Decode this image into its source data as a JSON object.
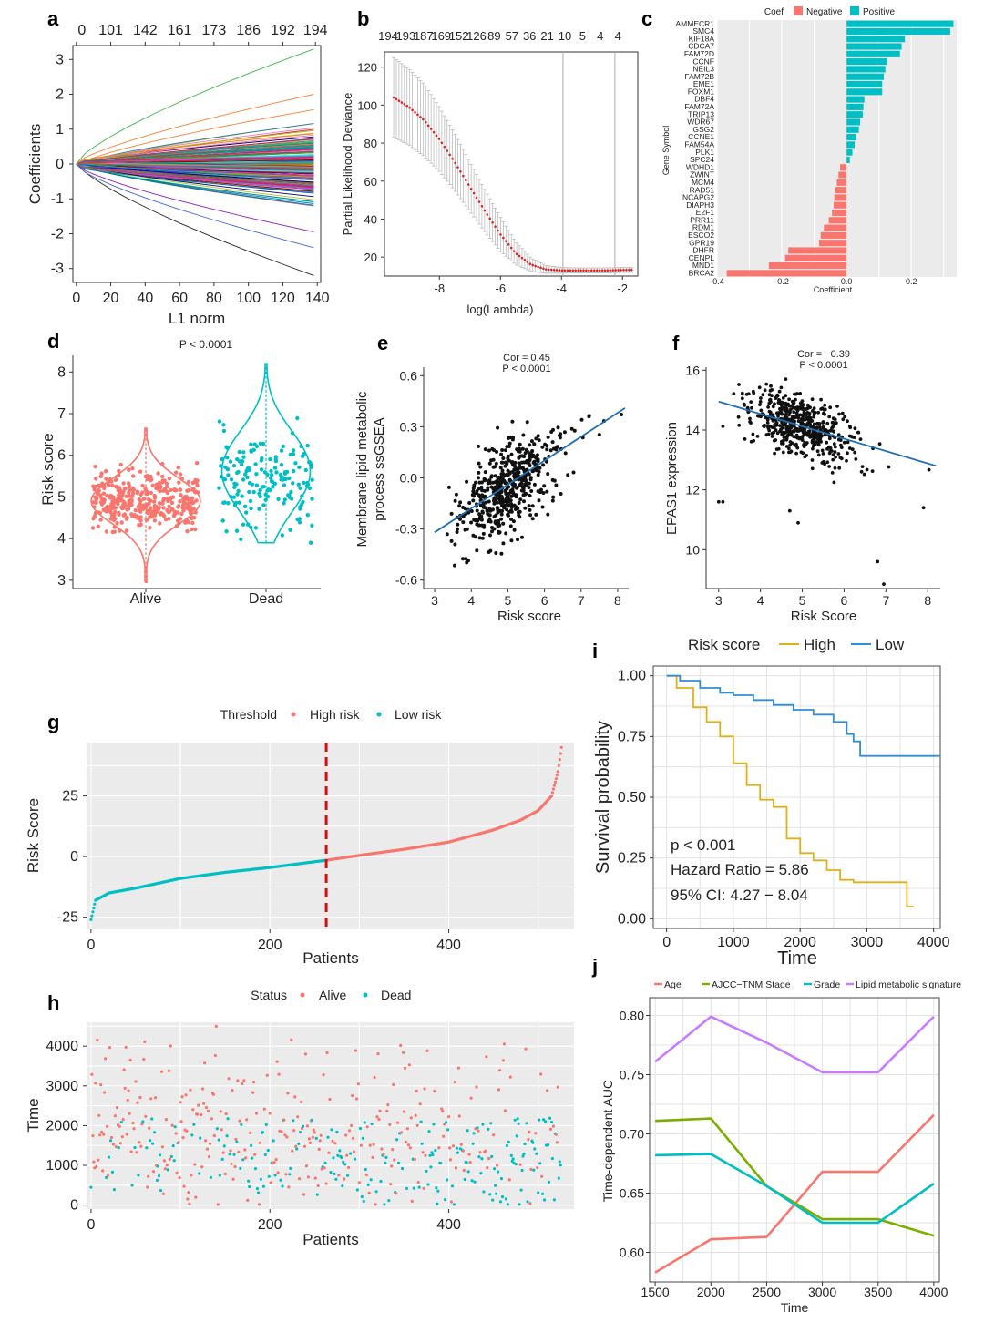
{
  "colors": {
    "red": "#F8766D",
    "teal": "#00BFC4",
    "black": "#111111",
    "blue": "#1f6fb5",
    "gold": "#E0B01A",
    "lightblue": "#2E8FD6",
    "olive": "#7CAE00",
    "purple": "#C77CFF",
    "dashed_red": "#CC1111"
  },
  "chart_data": [
    {
      "panel": "a",
      "type": "line",
      "xlabel": "L1 norm",
      "ylabel": "Coefficients",
      "top_axis_ticks": [
        "0",
        "101",
        "142",
        "161",
        "173",
        "186",
        "192",
        "194"
      ],
      "x_ticks": [
        0,
        20,
        40,
        60,
        80,
        100,
        120,
        140
      ],
      "y_ticks": [
        -3,
        -2,
        -1,
        0,
        1,
        2,
        3
      ],
      "xlim": [
        -2,
        142
      ],
      "ylim": [
        -3.4,
        3.4
      ],
      "series_count": 194,
      "end_coef_range": [
        -3.2,
        3.3
      ]
    },
    {
      "panel": "b",
      "type": "scatter",
      "xlabel": "log(Lambda)",
      "ylabel": "Partial Likelihood Deviance",
      "top_axis_ticks": [
        "194",
        "193",
        "187",
        "169",
        "152",
        "126",
        "89",
        "57",
        "36",
        "21",
        "10",
        "5",
        "4",
        "4"
      ],
      "x_ticks": [
        -8,
        -6,
        -4,
        -2
      ],
      "y_ticks": [
        20,
        40,
        60,
        80,
        100,
        120
      ],
      "xlim": [
        -9.8,
        -1.5
      ],
      "ylim": [
        10,
        128
      ],
      "vlines": [
        -3.95,
        -2.25
      ],
      "x": [
        -9.5,
        -9.0,
        -8.5,
        -8.0,
        -7.5,
        -7.0,
        -6.5,
        -6.0,
        -5.5,
        -5.0,
        -4.5,
        -4.0,
        -3.5,
        -3.0,
        -2.5,
        -2.0,
        -1.7
      ],
      "y": [
        104,
        99,
        92,
        82,
        70,
        57,
        44,
        32,
        22,
        16,
        13.5,
        13,
        13,
        13,
        13,
        13.2,
        13.3
      ],
      "err": [
        21,
        20,
        19,
        17,
        15,
        13,
        11,
        9,
        6,
        3.5,
        2,
        1.5,
        1.3,
        1.3,
        1.3,
        1.3,
        1.3
      ]
    },
    {
      "panel": "c",
      "type": "bar",
      "legend_title": "Coef",
      "legend": [
        "Negative",
        "Positive"
      ],
      "xlabel": "Coefficient",
      "ylabel": "Gene Symbol",
      "x_ticks": [
        "-0.4",
        "-0.2",
        "0.0",
        "0.2"
      ],
      "xlim": [
        -0.4,
        0.34
      ],
      "categories": [
        "AMMECR1",
        "SMC4",
        "KIF18A",
        "CDCA7",
        "FAM72D",
        "CCNF",
        "NEIL3",
        "FAM72B",
        "EME1",
        "FOXM1",
        "DBF4",
        "FAM72A",
        "TRIP13",
        "WDR67",
        "GSG2",
        "CCNE1",
        "FAM54A",
        "PLK1",
        "SPC24",
        "WDHD1",
        "ZWINT",
        "MCM4",
        "RAD51",
        "NCAPG2",
        "DIAPH3",
        "E2F1",
        "PRR11",
        "RDM1",
        "ESCO2",
        "GPR19",
        "DHFR",
        "CENPL",
        "MND1",
        "BRCA2"
      ],
      "values": [
        0.33,
        0.32,
        0.18,
        0.17,
        0.165,
        0.125,
        0.12,
        0.115,
        0.11,
        0.11,
        0.055,
        0.052,
        0.05,
        0.042,
        0.038,
        0.03,
        0.025,
        0.018,
        0.01,
        -0.02,
        -0.025,
        -0.03,
        -0.035,
        -0.038,
        -0.04,
        -0.045,
        -0.055,
        -0.07,
        -0.08,
        -0.085,
        -0.18,
        -0.19,
        -0.24,
        -0.37
      ]
    },
    {
      "panel": "d",
      "type": "scatter",
      "subtitle": "P < 0.0001",
      "ylabel": "Risk score",
      "categories": [
        "Alive",
        "Dead"
      ],
      "y_ticks": [
        3,
        4,
        5,
        6,
        7,
        8
      ],
      "ylim": [
        2.8,
        8.4
      ],
      "groups": [
        {
          "name": "Alive",
          "median": 4.9,
          "min": 2.95,
          "max": 6.65,
          "n": 360
        },
        {
          "name": "Dead",
          "median": 5.4,
          "min": 3.9,
          "max": 8.2,
          "n": 170
        }
      ]
    },
    {
      "panel": "e",
      "type": "scatter",
      "annotation": [
        "Cor = 0.45",
        "P < 0.0001"
      ],
      "xlabel": "Risk score",
      "ylabel": "Membrane lipid metabolic process ssGSEA",
      "ylabel_lines": [
        "Membrane lipid metabolic",
        "process ssGSEA"
      ],
      "x_ticks": [
        3,
        4,
        5,
        6,
        7,
        8
      ],
      "y_ticks": [
        "-0.6",
        "-0.3",
        "0.0",
        "0.3",
        "0.6"
      ],
      "xlim": [
        2.7,
        8.3
      ],
      "ylim": [
        -0.65,
        0.65
      ],
      "fit_line": {
        "x": [
          3.0,
          8.2
        ],
        "y": [
          -0.32,
          0.41
        ]
      },
      "n_points": 530
    },
    {
      "panel": "f",
      "type": "scatter",
      "annotation": [
        "Cor = −0.39",
        "P < 0.0001"
      ],
      "xlabel": "Risk Score",
      "ylabel": "EPAS1 expression",
      "x_ticks": [
        3,
        4,
        5,
        6,
        7,
        8
      ],
      "y_ticks": [
        10,
        12,
        14,
        16
      ],
      "xlim": [
        2.7,
        8.3
      ],
      "ylim": [
        8.7,
        16.1
      ],
      "fit_line": {
        "x": [
          3.0,
          8.2
        ],
        "y": [
          14.95,
          12.8
        ]
      },
      "n_points": 530
    },
    {
      "panel": "g",
      "type": "scatter",
      "legend_title": "Threshold",
      "legend": [
        "High risk",
        "Low risk"
      ],
      "xlabel": "Patients",
      "ylabel": "Risk Score",
      "x_ticks": [
        0,
        200,
        400
      ],
      "y_ticks": [
        -25,
        0,
        25
      ],
      "xlim": [
        -5,
        540
      ],
      "ylim": [
        -30,
        47
      ],
      "cutoff": 263,
      "x": [
        0,
        5,
        20,
        50,
        100,
        150,
        200,
        263,
        300,
        350,
        400,
        450,
        480,
        500,
        515,
        522,
        526
      ],
      "y": [
        -26,
        -18,
        -15,
        -13,
        -9,
        -6.5,
        -4.5,
        -1.5,
        0.5,
        3,
        6,
        11,
        15,
        19,
        25,
        35,
        45
      ]
    },
    {
      "panel": "h",
      "type": "scatter",
      "legend_title": "Status",
      "legend": [
        "Alive",
        "Dead"
      ],
      "xlabel": "Patients",
      "ylabel": "Time",
      "x_ticks": [
        0,
        200,
        400
      ],
      "y_ticks": [
        0,
        1000,
        2000,
        3000,
        4000
      ],
      "xlim": [
        -5,
        540
      ],
      "ylim": [
        -100,
        4600
      ],
      "n_points": 526
    },
    {
      "panel": "i",
      "type": "line",
      "legend_title": "Risk score",
      "legend": [
        "High",
        "Low"
      ],
      "xlabel": "Time",
      "ylabel": "Survival probability",
      "x_ticks": [
        0,
        1000,
        2000,
        3000,
        4000
      ],
      "y_ticks": [
        "0.00",
        "0.25",
        "0.50",
        "0.75",
        "1.00"
      ],
      "xlim": [
        -200,
        4100
      ],
      "ylim": [
        -0.04,
        1.04
      ],
      "annotations": [
        "p < 0.001",
        "Hazard Ratio = 5.86",
        "95% CI: 4.27 − 8.04"
      ],
      "series": [
        {
          "name": "High",
          "x": [
            0,
            150,
            400,
            600,
            800,
            1000,
            1200,
            1400,
            1600,
            1800,
            2000,
            2200,
            2400,
            2600,
            2800,
            3000,
            3200,
            3400,
            3600,
            3700
          ],
          "y": [
            1.0,
            0.95,
            0.87,
            0.81,
            0.75,
            0.64,
            0.55,
            0.49,
            0.46,
            0.33,
            0.27,
            0.24,
            0.2,
            0.16,
            0.15,
            0.15,
            0.15,
            0.15,
            0.05,
            0.05
          ]
        },
        {
          "name": "Low",
          "x": [
            0,
            200,
            500,
            800,
            1000,
            1300,
            1600,
            1900,
            2200,
            2500,
            2700,
            2800,
            2900,
            3200,
            3600,
            4100
          ],
          "y": [
            1.0,
            0.98,
            0.95,
            0.93,
            0.92,
            0.9,
            0.88,
            0.86,
            0.84,
            0.81,
            0.76,
            0.73,
            0.67,
            0.67,
            0.67,
            0.67
          ]
        }
      ]
    },
    {
      "panel": "j",
      "type": "line",
      "legend": [
        "Age",
        "AJCC−TNM Stage",
        "Grade",
        "Lipid metabolic signature"
      ],
      "xlabel": "Time",
      "ylabel": "Time-dependent AUC",
      "x": [
        1500,
        2000,
        2500,
        3000,
        3500,
        4000
      ],
      "x_ticks": [
        1500,
        2000,
        2500,
        3000,
        3500,
        4000
      ],
      "y_ticks": [
        "0.60",
        "0.65",
        "0.70",
        "0.75",
        "0.80"
      ],
      "xlim": [
        1450,
        4050
      ],
      "ylim": [
        0.575,
        0.815
      ],
      "series": [
        {
          "name": "Age",
          "values": [
            0.583,
            0.611,
            0.613,
            0.668,
            0.668,
            0.716
          ]
        },
        {
          "name": "AJCC−TNM Stage",
          "values": [
            0.711,
            0.713,
            0.656,
            0.628,
            0.628,
            0.614
          ]
        },
        {
          "name": "Grade",
          "values": [
            0.682,
            0.683,
            0.656,
            0.625,
            0.625,
            0.658
          ]
        },
        {
          "name": "Lipid metabolic signature",
          "values": [
            0.761,
            0.799,
            0.777,
            0.752,
            0.752,
            0.799
          ]
        }
      ]
    }
  ]
}
